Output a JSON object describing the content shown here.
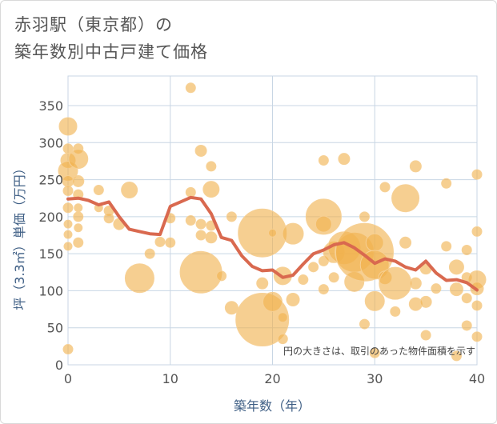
{
  "title": "赤羽駅（東京都）の\n築年数別中古戸建て価格",
  "chart_data": {
    "type": "scatter",
    "title": "赤羽駅（東京都）の築年数別中古戸建て価格",
    "xlabel": "築年数（年）",
    "ylabel": "坪（3.3㎡）単価（万円）",
    "xlim": [
      0,
      40
    ],
    "ylim": [
      0,
      390
    ],
    "xticks": [
      0,
      10,
      20,
      30,
      40
    ],
    "yticks": [
      0,
      50,
      100,
      150,
      200,
      250,
      300,
      350
    ],
    "grid": true,
    "note": "円の大きさは、取引のあった物件面積を示す",
    "colors": {
      "bubble": "#f0b24d",
      "trend": "#d9694f",
      "grid": "#c8d6e4"
    },
    "bubbles": [
      {
        "x": 0,
        "y": 322,
        "s": 11
      },
      {
        "x": 0,
        "y": 292,
        "s": 6
      },
      {
        "x": 0,
        "y": 276,
        "s": 9
      },
      {
        "x": 0,
        "y": 262,
        "s": 12
      },
      {
        "x": 0,
        "y": 248,
        "s": 7
      },
      {
        "x": 0,
        "y": 235,
        "s": 6
      },
      {
        "x": 0,
        "y": 212,
        "s": 6
      },
      {
        "x": 0,
        "y": 190,
        "s": 5
      },
      {
        "x": 0,
        "y": 176,
        "s": 5
      },
      {
        "x": 0,
        "y": 160,
        "s": 5
      },
      {
        "x": 0,
        "y": 21,
        "s": 6
      },
      {
        "x": 1,
        "y": 292,
        "s": 6
      },
      {
        "x": 1,
        "y": 278,
        "s": 12
      },
      {
        "x": 1,
        "y": 248,
        "s": 7
      },
      {
        "x": 1,
        "y": 230,
        "s": 6
      },
      {
        "x": 1,
        "y": 212,
        "s": 5
      },
      {
        "x": 1,
        "y": 200,
        "s": 6
      },
      {
        "x": 1,
        "y": 185,
        "s": 5
      },
      {
        "x": 1,
        "y": 165,
        "s": 6
      },
      {
        "x": 3,
        "y": 236,
        "s": 6
      },
      {
        "x": 3,
        "y": 212,
        "s": 5
      },
      {
        "x": 4,
        "y": 208,
        "s": 6
      },
      {
        "x": 4,
        "y": 198,
        "s": 6
      },
      {
        "x": 5,
        "y": 190,
        "s": 7
      },
      {
        "x": 6,
        "y": 236,
        "s": 10
      },
      {
        "x": 7,
        "y": 117,
        "s": 18
      },
      {
        "x": 8,
        "y": 150,
        "s": 6
      },
      {
        "x": 9,
        "y": 166,
        "s": 6
      },
      {
        "x": 10,
        "y": 198,
        "s": 6
      },
      {
        "x": 10,
        "y": 165,
        "s": 6
      },
      {
        "x": 12,
        "y": 374,
        "s": 6
      },
      {
        "x": 12,
        "y": 233,
        "s": 6
      },
      {
        "x": 12,
        "y": 195,
        "s": 6
      },
      {
        "x": 13,
        "y": 289,
        "s": 7
      },
      {
        "x": 13,
        "y": 190,
        "s": 6
      },
      {
        "x": 13,
        "y": 175,
        "s": 6
      },
      {
        "x": 13,
        "y": 125,
        "s": 26
      },
      {
        "x": 14,
        "y": 268,
        "s": 6
      },
      {
        "x": 14,
        "y": 237,
        "s": 10
      },
      {
        "x": 14,
        "y": 188,
        "s": 6
      },
      {
        "x": 14,
        "y": 172,
        "s": 7
      },
      {
        "x": 15,
        "y": 120,
        "s": 6
      },
      {
        "x": 16,
        "y": 200,
        "s": 6
      },
      {
        "x": 16,
        "y": 77,
        "s": 8
      },
      {
        "x": 19,
        "y": 178,
        "s": 30
      },
      {
        "x": 19,
        "y": 110,
        "s": 7
      },
      {
        "x": 19,
        "y": 61,
        "s": 33
      },
      {
        "x": 20,
        "y": 178,
        "s": 5
      },
      {
        "x": 20,
        "y": 85,
        "s": 12
      },
      {
        "x": 21,
        "y": 120,
        "s": 11
      },
      {
        "x": 21,
        "y": 64,
        "s": 6
      },
      {
        "x": 21,
        "y": 35,
        "s": 6
      },
      {
        "x": 22,
        "y": 177,
        "s": 13
      },
      {
        "x": 22,
        "y": 88,
        "s": 8
      },
      {
        "x": 23,
        "y": 115,
        "s": 6
      },
      {
        "x": 24,
        "y": 132,
        "s": 6
      },
      {
        "x": 25,
        "y": 276,
        "s": 6
      },
      {
        "x": 25,
        "y": 200,
        "s": 22
      },
      {
        "x": 25,
        "y": 190,
        "s": 10
      },
      {
        "x": 25,
        "y": 140,
        "s": 6
      },
      {
        "x": 25,
        "y": 102,
        "s": 6
      },
      {
        "x": 26,
        "y": 152,
        "s": 13
      },
      {
        "x": 26,
        "y": 118,
        "s": 6
      },
      {
        "x": 27,
        "y": 278,
        "s": 7
      },
      {
        "x": 27,
        "y": 158,
        "s": 20
      },
      {
        "x": 28,
        "y": 152,
        "s": 24
      },
      {
        "x": 28,
        "y": 112,
        "s": 12
      },
      {
        "x": 29,
        "y": 152,
        "s": 36
      },
      {
        "x": 29,
        "y": 55,
        "s": 6
      },
      {
        "x": 29,
        "y": 200,
        "s": 6
      },
      {
        "x": 30,
        "y": 165,
        "s": 11
      },
      {
        "x": 30,
        "y": 135,
        "s": 18
      },
      {
        "x": 30,
        "y": 86,
        "s": 12
      },
      {
        "x": 30,
        "y": 16,
        "s": 6
      },
      {
        "x": 31,
        "y": 240,
        "s": 6
      },
      {
        "x": 31,
        "y": 118,
        "s": 8
      },
      {
        "x": 32,
        "y": 110,
        "s": 20
      },
      {
        "x": 32,
        "y": 72,
        "s": 6
      },
      {
        "x": 33,
        "y": 225,
        "s": 17
      },
      {
        "x": 33,
        "y": 165,
        "s": 7
      },
      {
        "x": 34,
        "y": 268,
        "s": 7
      },
      {
        "x": 34,
        "y": 110,
        "s": 7
      },
      {
        "x": 34,
        "y": 82,
        "s": 8
      },
      {
        "x": 35,
        "y": 130,
        "s": 7
      },
      {
        "x": 35,
        "y": 85,
        "s": 7
      },
      {
        "x": 35,
        "y": 40,
        "s": 6
      },
      {
        "x": 36,
        "y": 103,
        "s": 6
      },
      {
        "x": 37,
        "y": 245,
        "s": 6
      },
      {
        "x": 37,
        "y": 160,
        "s": 6
      },
      {
        "x": 38,
        "y": 132,
        "s": 9
      },
      {
        "x": 38,
        "y": 102,
        "s": 8
      },
      {
        "x": 38,
        "y": 12,
        "s": 6
      },
      {
        "x": 39,
        "y": 155,
        "s": 6
      },
      {
        "x": 39,
        "y": 118,
        "s": 6
      },
      {
        "x": 39,
        "y": 90,
        "s": 6
      },
      {
        "x": 39,
        "y": 53,
        "s": 6
      },
      {
        "x": 40,
        "y": 257,
        "s": 6
      },
      {
        "x": 40,
        "y": 180,
        "s": 6
      },
      {
        "x": 40,
        "y": 115,
        "s": 11
      },
      {
        "x": 40,
        "y": 103,
        "s": 8
      },
      {
        "x": 40,
        "y": 80,
        "s": 6
      },
      {
        "x": 40,
        "y": 38,
        "s": 6
      }
    ],
    "trend": {
      "x": [
        0,
        1,
        2,
        3,
        4,
        5,
        6,
        7,
        8,
        9,
        10,
        11,
        12,
        13,
        14,
        15,
        16,
        17,
        18,
        19,
        20,
        21,
        22,
        23,
        24,
        25,
        26,
        27,
        28,
        29,
        30,
        31,
        32,
        33,
        34,
        35,
        36,
        37,
        38,
        39,
        40
      ],
      "y": [
        224,
        225,
        222,
        216,
        220,
        200,
        183,
        180,
        177,
        176,
        214,
        220,
        226,
        224,
        204,
        172,
        168,
        147,
        133,
        127,
        128,
        118,
        121,
        136,
        150,
        155,
        162,
        165,
        158,
        148,
        137,
        143,
        140,
        132,
        128,
        140,
        124,
        114,
        115,
        111,
        101
      ]
    }
  }
}
